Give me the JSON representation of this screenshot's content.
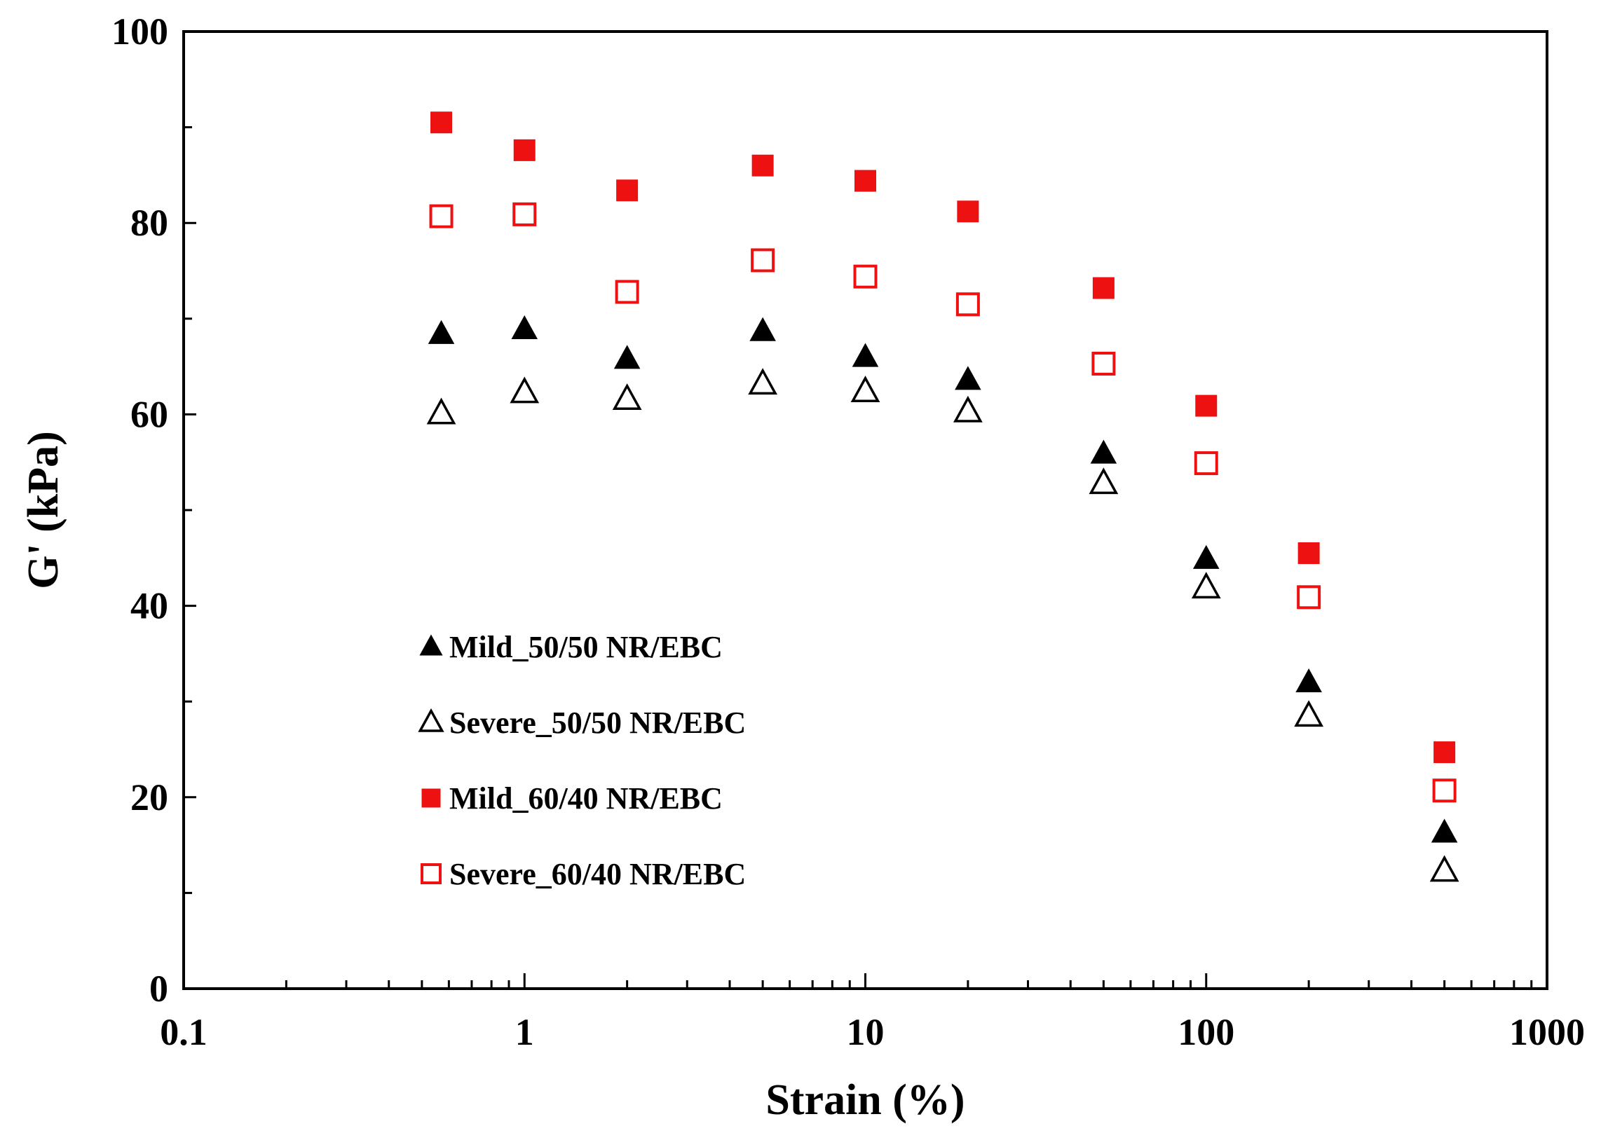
{
  "chart_data": {
    "type": "scatter",
    "title": "",
    "xlabel": "Strain (%)",
    "ylabel": "G' (kPa)",
    "xscale": "log",
    "xlim": [
      0.1,
      1000
    ],
    "ylim": [
      0,
      100
    ],
    "x_ticks": [
      0.1,
      1,
      10,
      100,
      1000
    ],
    "x_tick_labels": [
      "0.1",
      "1",
      "10",
      "100",
      "1000"
    ],
    "y_ticks": [
      0,
      20,
      40,
      60,
      80,
      100
    ],
    "y_tick_labels": [
      "0",
      "20",
      "40",
      "60",
      "80",
      "100"
    ],
    "grid": false,
    "legend_position": "left-middle",
    "x": [
      0.57,
      1,
      2,
      5,
      10,
      20,
      50,
      100,
      200,
      500
    ],
    "series": [
      {
        "name": "Mild_50/50 NR/EBC",
        "marker": "triangle-filled",
        "color": "#000000",
        "values": [
          68.4,
          68.9,
          65.8,
          68.7,
          66.0,
          63.6,
          55.9,
          44.9,
          32.0,
          16.3
        ]
      },
      {
        "name": "Severe_50/50 NR/EBC",
        "marker": "triangle-open",
        "color": "#000000",
        "values": [
          60.1,
          62.3,
          61.6,
          63.2,
          62.4,
          60.3,
          52.8,
          41.9,
          28.5,
          12.3
        ]
      },
      {
        "name": "Mild_60/40 NR/EBC",
        "marker": "square-filled",
        "color": "#ee1111",
        "values": [
          90.5,
          87.6,
          83.4,
          86.0,
          84.4,
          81.2,
          73.2,
          60.9,
          45.5,
          24.7
        ]
      },
      {
        "name": "Severe_60/40 NR/EBC",
        "marker": "square-open",
        "color": "#ee1111",
        "values": [
          80.7,
          80.9,
          72.8,
          76.1,
          74.4,
          71.5,
          65.3,
          54.9,
          40.9,
          20.7
        ]
      }
    ]
  }
}
